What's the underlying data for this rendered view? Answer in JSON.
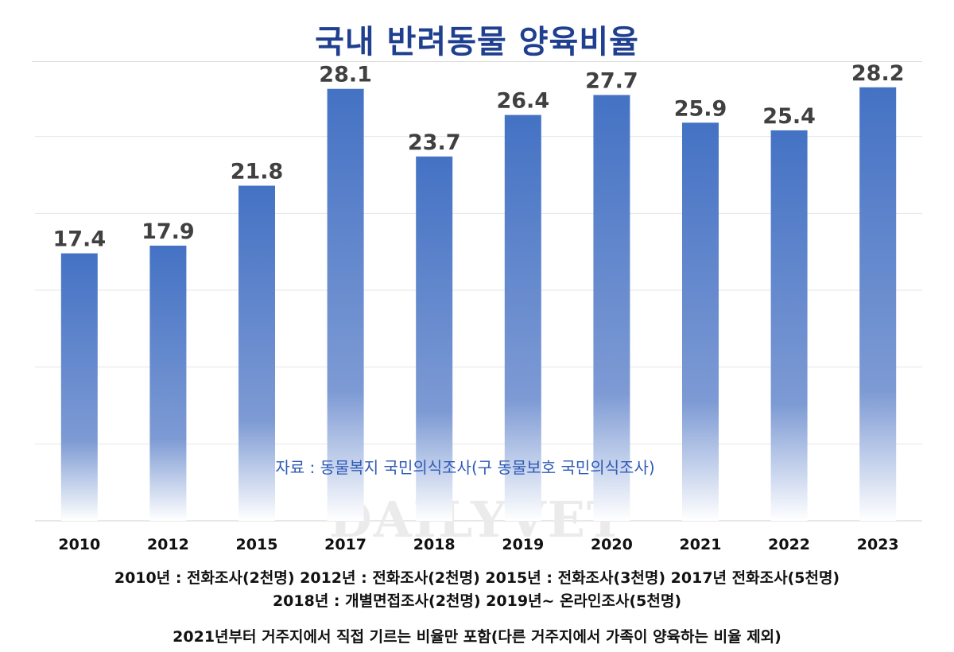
{
  "title": "국내 반려동물 양육비율",
  "chart_data": {
    "type": "bar",
    "title": "국내 반려동물 양육비율",
    "categories": [
      "2010",
      "2012",
      "2015",
      "2017",
      "2018",
      "2019",
      "2020",
      "2021",
      "2022",
      "2023"
    ],
    "values": [
      17.4,
      17.9,
      21.8,
      28.1,
      23.7,
      26.4,
      27.7,
      25.9,
      25.4,
      28.2
    ],
    "data_labels": [
      "17.4",
      "17.9",
      "21.8",
      "28.1",
      "23.7",
      "26.4",
      "27.7",
      "25.9",
      "25.4",
      "28.2"
    ],
    "xlabel": "",
    "ylabel": "",
    "ylim": [
      0,
      30
    ],
    "y_axis_labels_shown": false,
    "grid": true,
    "legend": "none",
    "source": "자료 : 동물복지 국민의식조사(구 동물보호 국민의식조사)",
    "watermark": "DAILYVET"
  },
  "notes": {
    "line1": "2010년 : 전화조사(2천명)  2012년 : 전화조사(2천명)  2015년 : 전화조사(3천명)  2017년 전화조사(5천명)",
    "line2": "2018년 : 개별면접조사(2천명)  2019년~ 온라인조사(5천명)",
    "line3": "2021년부터 거주지에서 직접 기르는 비율만 포함(다른 거주지에서 가족이 양육하는 비율 제외)"
  },
  "colors": {
    "title": "#1f3f8f",
    "bar_top": "#4472c4",
    "bar_fade": "#ffffff",
    "value_label": "#404040",
    "source_text": "#2f5bb7",
    "grid": "#e6e6e6",
    "watermark": "#e8e8e8"
  }
}
